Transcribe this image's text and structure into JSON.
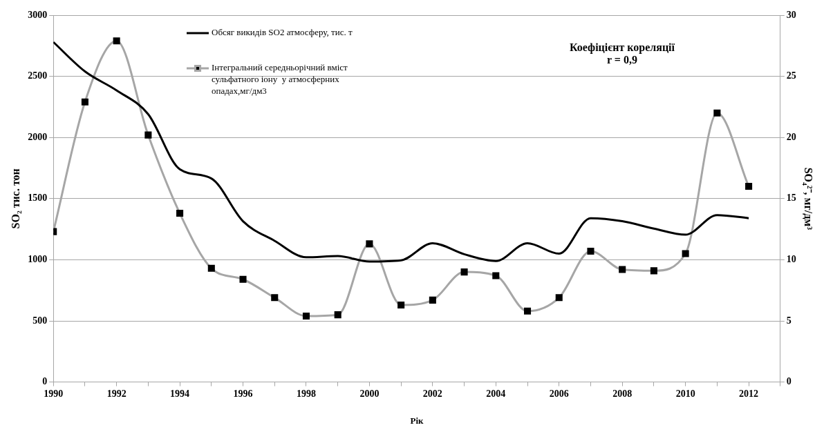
{
  "chart_data": {
    "type": "line",
    "xlabel": "Рік",
    "ylabel": "SO₂ тис. тон",
    "y2label": "SO₄²⁻, мг/дм³",
    "annotations": [
      "Коефіцієнт кореляції\nr = 0,9"
    ],
    "x": [
      1990,
      1991,
      1992,
      1993,
      1994,
      1995,
      1996,
      1997,
      1998,
      1999,
      2000,
      2001,
      2002,
      2003,
      2004,
      2005,
      2006,
      2007,
      2008,
      2009,
      2010,
      2011,
      2012
    ],
    "xlim": [
      1990,
      2013
    ],
    "xticks": [
      1990,
      {
        "value": 1991,
        "label": null
      },
      1992,
      {
        "value": 1993,
        "label": null
      },
      1994,
      {
        "value": 1995,
        "label": null
      },
      1996,
      {
        "value": 1997,
        "label": null
      },
      1998,
      {
        "value": 1999,
        "label": null
      },
      2000,
      {
        "value": 2001,
        "label": null
      },
      2002,
      {
        "value": 2003,
        "label": null
      },
      2004,
      {
        "value": 2005,
        "label": null
      },
      2006,
      {
        "value": 2007,
        "label": null
      },
      2008,
      {
        "value": 2009,
        "label": null
      },
      2010,
      {
        "value": 2011,
        "label": null
      },
      2012,
      {
        "value": 2013,
        "label": null
      }
    ],
    "ylim": [
      0,
      3000
    ],
    "yticks": [
      0,
      500,
      1000,
      1500,
      2000,
      2500,
      3000
    ],
    "y2lim": [
      0,
      30
    ],
    "y2ticks": [
      0,
      5,
      10,
      15,
      20,
      25,
      30
    ],
    "grid": "y",
    "legend": "top left",
    "series": [
      {
        "name": "Обсяг викидів SO2 атмосферу, тис. т",
        "color": "#000000",
        "marker": "none",
        "values": [
          2780,
          2540,
          2385,
          2190,
          1740,
          1665,
          1315,
          1155,
          1020,
          1030,
          985,
          995,
          1135,
          1045,
          990,
          1135,
          1050,
          1340,
          1315,
          1255,
          1205,
          1365,
          1340
        ]
      },
      {
        "name": "Інтегральний середньорічний вміст сульфатного іону  у атмосферних опадах,мг/дм3",
        "color": "#a6a6a6",
        "marker": "square",
        "axis": "y2",
        "values": [
          12.3,
          22.9,
          27.9,
          20.2,
          13.8,
          9.3,
          8.4,
          6.9,
          5.4,
          5.5,
          11.3,
          6.3,
          6.7,
          9.0,
          8.7,
          5.8,
          6.9,
          10.7,
          9.2,
          9.1,
          10.5,
          22.0,
          16.0
        ]
      }
    ]
  }
}
